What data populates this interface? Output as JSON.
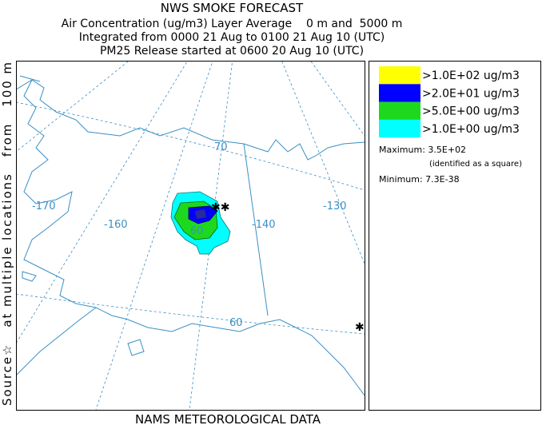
{
  "header": {
    "title": "NWS SMOKE FORECAST",
    "line1": "Air Concentration (ug/m3) Layer Average    0 m and  5000 m",
    "line2": "Integrated from 0000 21 Aug to 0100 21 Aug 10 (UTC)",
    "line3": "PM25 Release started at 0600 20 Aug 10 (UTC)"
  },
  "side_label": "Source☆   at multiple locations   from   100 m",
  "footer": "NAMS METEOROLOGICAL DATA",
  "map": {
    "labels": [
      "-170",
      "-160",
      "-140",
      "-130",
      "70",
      "60",
      "60"
    ]
  },
  "legend": {
    "entries": [
      {
        "label": ">1.0E+02 ug/m3",
        "color": "#ffff00"
      },
      {
        "label": ">2.0E+01 ug/m3",
        "color": "#0000ff"
      },
      {
        "label": ">5.0E+00 ug/m3",
        "color": "#1ed81e"
      },
      {
        "label": ">1.0E+00 ug/m3",
        "color": "#00ffff"
      }
    ],
    "maximum": "Maximum: 3.5E+02",
    "maximum_note": "(identified as a square)",
    "minimum": "Minimum: 7.3E-38"
  }
}
